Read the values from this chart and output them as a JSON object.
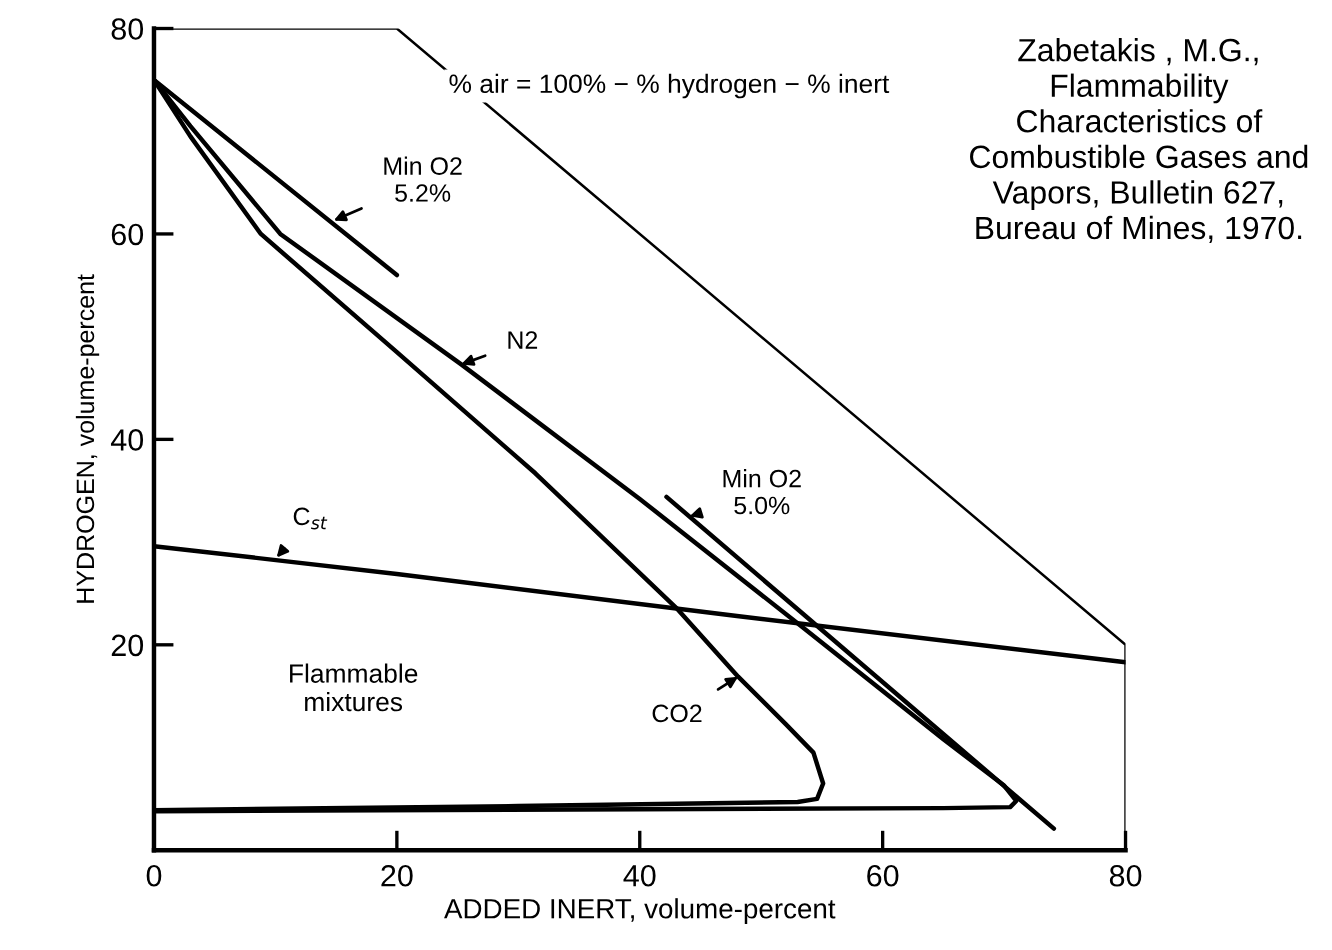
{
  "chart_data": {
    "type": "line",
    "xlabel": "ADDED INERT, volume-percent",
    "ylabel": "HYDROGEN, volume-percent",
    "xlim": [
      0,
      80
    ],
    "ylim": [
      0,
      80
    ],
    "xticks": [
      0,
      20,
      40,
      60,
      80
    ],
    "yticks": [
      20,
      40,
      60,
      80
    ],
    "grid": false,
    "legend": false,
    "marker": "none",
    "line_style": "solid",
    "series": [
      {
        "color": "#000000",
        "x": [
          0,
          20,
          80,
          80
        ],
        "values": [
          80,
          80,
          20,
          0
        ]
      },
      {
        "color": "#000000",
        "x": [
          0,
          20
        ],
        "values": [
          75,
          56
        ]
      },
      {
        "color": "#000000",
        "x": [
          0,
          3,
          10.4,
          25.3,
          40,
          53.2,
          65,
          70,
          71,
          70.5,
          65,
          40,
          0
        ],
        "values": [
          75,
          70.5,
          60,
          47.3,
          34.2,
          21.9,
          10.8,
          6.3,
          4.8,
          4.2,
          4.1,
          4,
          3.8
        ]
      },
      {
        "color": "#000000",
        "x": [
          0,
          3,
          8.8,
          20,
          31.4,
          43,
          48.1,
          52,
          54.3,
          55.1,
          54.6,
          53,
          30,
          0
        ],
        "values": [
          75,
          69.5,
          60,
          48.5,
          36.7,
          23.6,
          16.9,
          12.3,
          9.5,
          6.5,
          5.0,
          4.7,
          4.3,
          3.9
        ]
      },
      {
        "color": "#000000",
        "x": [
          42.2,
          74.1
        ],
        "values": [
          34.4,
          2.1
        ]
      },
      {
        "color": "#000000",
        "x": [
          0,
          20,
          48,
          80
        ],
        "values": [
          29.6,
          26.9,
          22.8,
          18.3
        ]
      }
    ],
    "annotations": [
      {
        "text": "Min O2\n5.2%",
        "x": 14.8,
        "y": 61.3
      },
      {
        "text": "N2",
        "x": 25.3,
        "y": 47.3
      },
      {
        "text": "Min O2\n5.0%",
        "x": 44.1,
        "y": 32.5
      },
      {
        "text": "C$_{st}$",
        "x": 10.1,
        "y": 28.5
      },
      {
        "text": "CO2",
        "x": 48.1,
        "y": 16.9
      },
      "Flammable\nmixtures",
      "% air = 100% − % hydrogen − % inert",
      "Zabetakis , M.G.,\nFlammability\nCharacteristics of\nCombustible Gases and\nVapors, Bulletin 627,\nBureau of Mines, 1970."
    ]
  }
}
